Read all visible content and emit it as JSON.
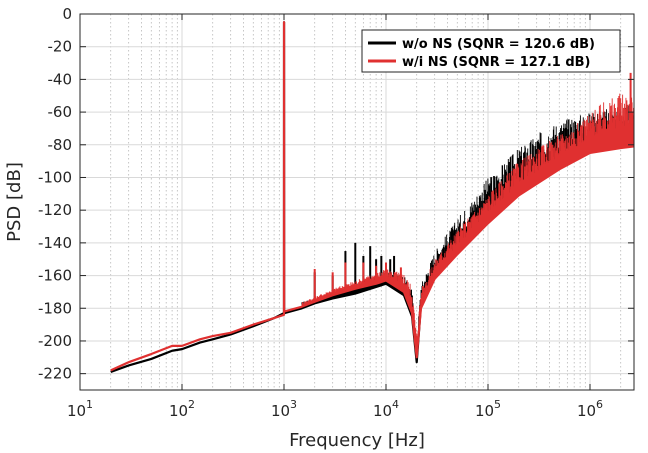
{
  "chart_data": {
    "type": "line",
    "title": "",
    "xlabel": "Frequency [Hz]",
    "ylabel": "PSD [dB]",
    "xscale": "log",
    "xlim": [
      10,
      2700000
    ],
    "ylim": [
      -230,
      0
    ],
    "x_tick_base": "10",
    "x_ticks": [
      {
        "value": 10,
        "exp": "1"
      },
      {
        "value": 100,
        "exp": "2"
      },
      {
        "value": 1000,
        "exp": "3"
      },
      {
        "value": 10000,
        "exp": "4"
      },
      {
        "value": 100000,
        "exp": "5"
      },
      {
        "value": 1000000,
        "exp": "6"
      }
    ],
    "y_ticks": [
      "0",
      "-20",
      "-40",
      "-60",
      "-80",
      "-100",
      "-120",
      "-140",
      "-160",
      "-180",
      "-200",
      "-220"
    ],
    "y_tick_values": [
      0,
      -20,
      -40,
      -60,
      -80,
      -100,
      -120,
      -140,
      -160,
      -180,
      -200,
      -220
    ],
    "grid": true,
    "legend_position": "top-right",
    "series": [
      {
        "name": "w/o NS (SQNR = 120.6 dB)",
        "color": "#000000",
        "points": [
          [
            20,
            -219
          ],
          [
            30,
            -215
          ],
          [
            50,
            -211
          ],
          [
            80,
            -206
          ],
          [
            100,
            -205
          ],
          [
            150,
            -201
          ],
          [
            200,
            -199
          ],
          [
            300,
            -196
          ],
          [
            500,
            -191
          ],
          [
            800,
            -186
          ],
          [
            1000,
            -183
          ],
          [
            1001,
            -5
          ],
          [
            1003,
            -183
          ],
          [
            1500,
            -180
          ],
          [
            2000,
            -177
          ],
          [
            3000,
            -174
          ],
          [
            5000,
            -171
          ],
          [
            8000,
            -167
          ],
          [
            10000,
            -165
          ],
          [
            15000,
            -172
          ],
          [
            18000,
            -185
          ],
          [
            20000,
            -213
          ],
          [
            22000,
            -178
          ],
          [
            30000,
            -160
          ],
          [
            50000,
            -145
          ],
          [
            100000,
            -125
          ],
          [
            200000,
            -108
          ],
          [
            500000,
            -92
          ],
          [
            1000000,
            -84
          ],
          [
            2000000,
            -81
          ],
          [
            2700000,
            -80
          ]
        ],
        "upper_envelope": [
          [
            1500,
            -176
          ],
          [
            2000,
            -174
          ],
          [
            3000,
            -170
          ],
          [
            5000,
            -165
          ],
          [
            8000,
            -160
          ],
          [
            10000,
            -158
          ],
          [
            15000,
            -160
          ],
          [
            18000,
            -168
          ],
          [
            20000,
            -200
          ],
          [
            22000,
            -165
          ],
          [
            30000,
            -145
          ],
          [
            50000,
            -125
          ],
          [
            100000,
            -100
          ],
          [
            200000,
            -82
          ],
          [
            400000,
            -68
          ],
          [
            700000,
            -62
          ],
          [
            1000000,
            -60
          ],
          [
            2000000,
            -56
          ],
          [
            2700000,
            -55
          ]
        ],
        "spurs": [
          [
            2000,
            -158
          ],
          [
            3000,
            -160
          ],
          [
            4000,
            -145
          ],
          [
            5000,
            -140
          ],
          [
            6000,
            -148
          ],
          [
            7000,
            -142
          ],
          [
            8000,
            -150
          ],
          [
            9000,
            -148
          ],
          [
            11000,
            -150
          ],
          [
            12000,
            -148
          ],
          [
            13000,
            -160
          ]
        ]
      },
      {
        "name": "w/i NS  (SQNR = 127.1 dB)",
        "color": "#e03030",
        "points": [
          [
            20,
            -218
          ],
          [
            30,
            -213
          ],
          [
            50,
            -208
          ],
          [
            80,
            -203
          ],
          [
            100,
            -203
          ],
          [
            150,
            -199
          ],
          [
            200,
            -197
          ],
          [
            300,
            -195
          ],
          [
            500,
            -190
          ],
          [
            800,
            -186
          ],
          [
            1000,
            -184
          ],
          [
            1001,
            -5
          ],
          [
            1003,
            -182
          ],
          [
            1500,
            -179
          ],
          [
            2000,
            -176
          ],
          [
            3000,
            -172
          ],
          [
            5000,
            -168
          ],
          [
            8000,
            -165
          ],
          [
            10000,
            -163
          ],
          [
            15000,
            -170
          ],
          [
            18000,
            -183
          ],
          [
            20000,
            -210
          ],
          [
            22000,
            -180
          ],
          [
            30000,
            -162
          ],
          [
            50000,
            -147
          ],
          [
            100000,
            -128
          ],
          [
            200000,
            -111
          ],
          [
            500000,
            -95
          ],
          [
            1000000,
            -85
          ],
          [
            2000000,
            -82
          ],
          [
            2700000,
            -81
          ]
        ],
        "upper_envelope": [
          [
            1500,
            -176
          ],
          [
            2000,
            -173
          ],
          [
            3000,
            -168
          ],
          [
            5000,
            -163
          ],
          [
            8000,
            -158
          ],
          [
            10000,
            -156
          ],
          [
            15000,
            -158
          ],
          [
            18000,
            -166
          ],
          [
            20000,
            -195
          ],
          [
            22000,
            -168
          ],
          [
            30000,
            -150
          ],
          [
            50000,
            -132
          ],
          [
            100000,
            -110
          ],
          [
            200000,
            -90
          ],
          [
            400000,
            -77
          ],
          [
            700000,
            -68
          ],
          [
            1000000,
            -60
          ],
          [
            1500000,
            -52
          ],
          [
            2000000,
            -48
          ],
          [
            2700000,
            -46
          ]
        ],
        "spurs": [
          [
            2000,
            -156
          ],
          [
            3000,
            -158
          ],
          [
            4000,
            -152
          ],
          [
            6000,
            -152
          ],
          [
            8000,
            -154
          ],
          [
            10000,
            -152
          ],
          [
            14000,
            -155
          ],
          [
            2500000,
            -36
          ]
        ]
      }
    ]
  }
}
